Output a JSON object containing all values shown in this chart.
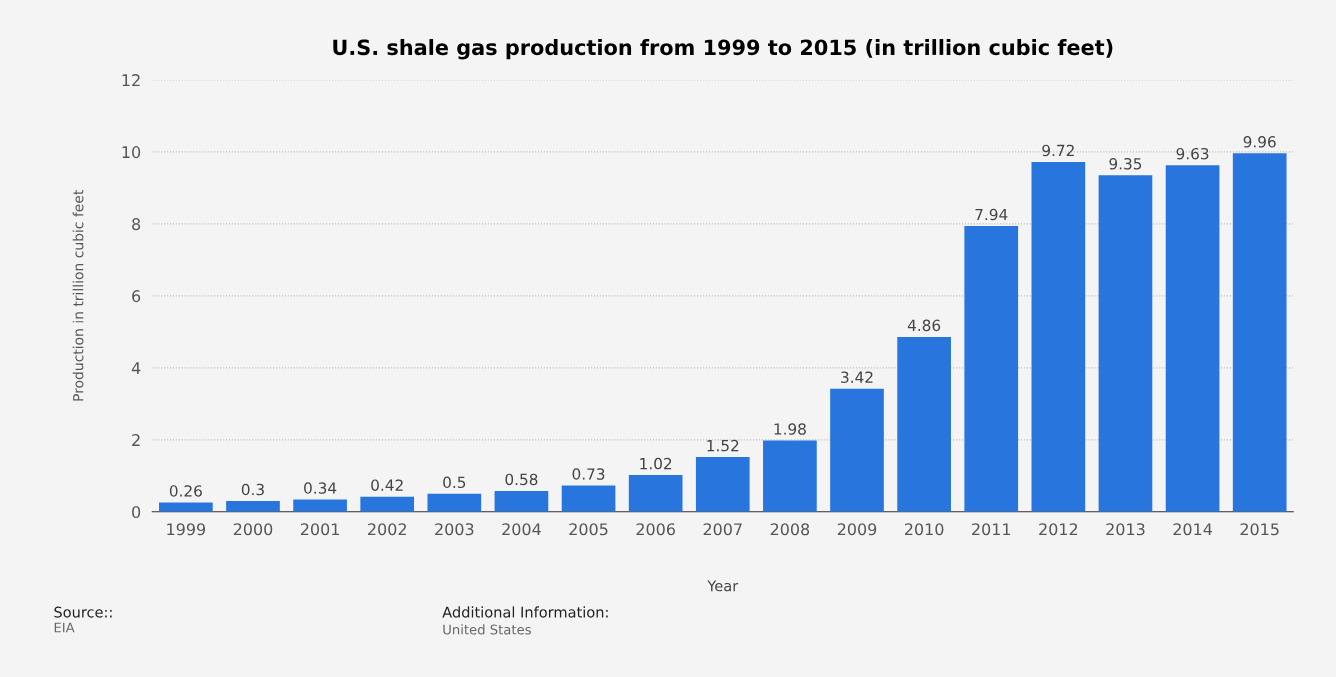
{
  "chart_data": {
    "type": "bar",
    "title": "U.S. shale gas production from 1999 to 2015 (in trillion cubic feet)",
    "xlabel": "Year",
    "ylabel": "Production in trillion cubic feet",
    "categories": [
      "1999",
      "2000",
      "2001",
      "2002",
      "2003",
      "2004",
      "2005",
      "2006",
      "2007",
      "2008",
      "2009",
      "2010",
      "2011",
      "2012",
      "2013",
      "2014",
      "2015"
    ],
    "values": [
      0.26,
      0.3,
      0.34,
      0.42,
      0.5,
      0.58,
      0.73,
      1.02,
      1.52,
      1.98,
      3.42,
      4.86,
      7.94,
      9.72,
      9.35,
      9.63,
      9.96
    ],
    "color": "#2876dd",
    "ylim": [
      0,
      12
    ],
    "yticks": [
      0,
      2,
      4,
      6,
      8,
      10,
      12
    ],
    "grid": "y",
    "data_labels": true,
    "annotations": [
      "Source::",
      "EIA",
      "Additional Information:",
      "United States"
    ]
  }
}
